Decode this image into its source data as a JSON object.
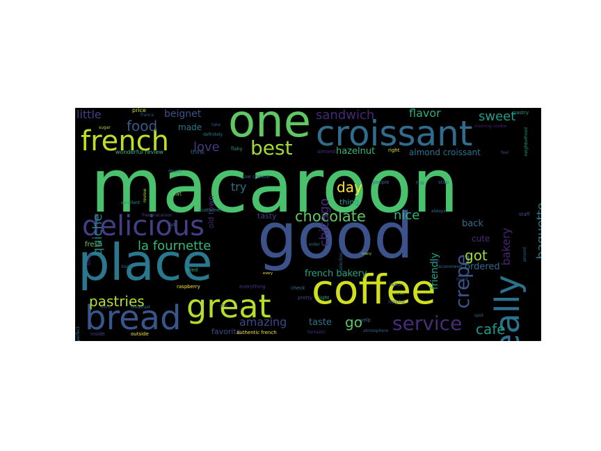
{
  "wordcloud": {
    "words": [
      {
        "text": "macaroon",
        "color": "#4ac16d"
      },
      {
        "text": "good",
        "color": "#3b528b"
      },
      {
        "text": "place",
        "color": "#2a788e"
      },
      {
        "text": "one",
        "color": "#5ec962"
      },
      {
        "text": "croissant",
        "color": "#2f6c8e"
      },
      {
        "text": "coffee",
        "color": "#d0e11c"
      },
      {
        "text": "bread",
        "color": "#39568c"
      },
      {
        "text": "great",
        "color": "#b5de2b"
      },
      {
        "text": "delicious",
        "color": "#433e85"
      },
      {
        "text": "really",
        "color": "#2c728e"
      },
      {
        "text": "french",
        "color": "#bddf26"
      },
      {
        "text": "service",
        "color": "#472c7a"
      },
      {
        "text": "best",
        "color": "#a2da37"
      },
      {
        "text": "chocolate",
        "color": "#5ec962"
      },
      {
        "text": "crepe",
        "color": "#3a548c"
      },
      {
        "text": "la fournette",
        "color": "#35b779"
      },
      {
        "text": "pastries",
        "color": "#b5de2b"
      },
      {
        "text": "quiche",
        "color": "#25848e"
      },
      {
        "text": "sandwich",
        "color": "#482878"
      },
      {
        "text": "food",
        "color": "#38598c"
      },
      {
        "text": "love",
        "color": "#443983"
      },
      {
        "text": "sweet",
        "color": "#1f9e89"
      },
      {
        "text": "day",
        "color": "#fde725"
      },
      {
        "text": "chicago",
        "color": "#472a7a"
      },
      {
        "text": "nice",
        "color": "#31b57b"
      },
      {
        "text": "amazing",
        "color": "#3e4989"
      },
      {
        "text": "got",
        "color": "#a0da39"
      },
      {
        "text": "go",
        "color": "#56c667"
      },
      {
        "text": "cafe",
        "color": "#1f998a"
      },
      {
        "text": "baguette",
        "color": "#2a788e"
      },
      {
        "text": "bakery",
        "color": "#482475"
      },
      {
        "text": "sandwiches",
        "color": "#482173"
      },
      {
        "text": "flavor",
        "color": "#29af7f"
      },
      {
        "text": "try",
        "color": "#2d708e"
      },
      {
        "text": "little",
        "color": "#433e85"
      },
      {
        "text": "beignet",
        "color": "#3b528b"
      },
      {
        "text": "friendly",
        "color": "#20a486"
      },
      {
        "text": "french bakery",
        "color": "#22a785"
      },
      {
        "text": "taste",
        "color": "#2c728e"
      },
      {
        "text": "hazelnut",
        "color": "#35b779"
      },
      {
        "text": "almond croissant",
        "color": "#2c728e"
      },
      {
        "text": "old town",
        "color": "#482878"
      },
      {
        "text": "made",
        "color": "#2a788e"
      },
      {
        "text": "thing",
        "color": "#20a386"
      },
      {
        "text": "tasty",
        "color": "#424086"
      },
      {
        "text": "back",
        "color": "#2e6e8e"
      },
      {
        "text": "cute",
        "color": "#472d7b"
      },
      {
        "text": "ordered",
        "color": "#2e6d8e"
      },
      {
        "text": "favorite",
        "color": "#3e4c8a"
      },
      {
        "text": "fresh",
        "color": "#5ec962"
      },
      {
        "text": "price",
        "color": "#d8e219"
      },
      {
        "text": "pastry",
        "color": "#1f988b"
      },
      {
        "text": "wonderful review",
        "color": "#35b779"
      },
      {
        "text": "think",
        "color": "#31688e"
      },
      {
        "text": "flaky",
        "color": "#20928c"
      },
      {
        "text": "almond",
        "color": "#46307e"
      },
      {
        "text": "right",
        "color": "#e2e418"
      },
      {
        "text": "much",
        "color": "#2d708e"
      },
      {
        "text": "raw cheese",
        "color": "#38598c"
      },
      {
        "text": "eat",
        "color": "#6ccd5a"
      },
      {
        "text": "customer",
        "color": "#26828e"
      },
      {
        "text": "people",
        "color": "#31688e"
      },
      {
        "text": "always",
        "color": "#2c728e"
      },
      {
        "text": "staff",
        "color": "#39568c"
      },
      {
        "text": "stop",
        "color": "#31688e"
      },
      {
        "text": "raspberry",
        "color": "#fde725"
      },
      {
        "text": "tried",
        "color": "#29af7f"
      },
      {
        "text": "everything",
        "color": "#453781"
      },
      {
        "text": "check",
        "color": "#287d8e"
      },
      {
        "text": "pretty",
        "color": "#3e4989"
      },
      {
        "text": "light",
        "color": "#1fa088"
      },
      {
        "text": "cheese",
        "color": "#a2da37"
      },
      {
        "text": "helpful",
        "color": "#3a548c"
      },
      {
        "text": "spot",
        "color": "#31688e"
      },
      {
        "text": "yelp",
        "color": "#2c728e"
      },
      {
        "text": "authentic french",
        "color": "#fde725"
      },
      {
        "text": "fantastic",
        "color": "#46327e"
      },
      {
        "text": "atmosphere",
        "color": "#33638d"
      },
      {
        "text": "inside",
        "color": "#3e4989"
      },
      {
        "text": "outside",
        "color": "#fde725"
      },
      {
        "text": "perfect",
        "color": "#2d708e"
      },
      {
        "text": "breakfast",
        "color": "#2d708e"
      },
      {
        "text": "star",
        "color": "#3b528b"
      },
      {
        "text": "definitely",
        "color": "#26828e"
      },
      {
        "text": "take",
        "color": "#3b528b"
      },
      {
        "text": "excellent",
        "color": "#21918c"
      },
      {
        "text": "order",
        "color": "#2a788e"
      },
      {
        "text": "item",
        "color": "#33638d"
      },
      {
        "text": "lot",
        "color": "#2a788e"
      },
      {
        "text": "well",
        "color": "#46307e"
      },
      {
        "text": "recommend",
        "color": "#2c728e"
      },
      {
        "text": "around",
        "color": "#2a788e"
      },
      {
        "text": "filling",
        "color": "#482475"
      },
      {
        "text": "better",
        "color": "#3b528b"
      },
      {
        "text": "loved",
        "color": "#3e4989"
      },
      {
        "text": "went",
        "color": "#3e4c8a"
      },
      {
        "text": "first",
        "color": "#31688e"
      },
      {
        "text": "every",
        "color": "#fde725"
      },
      {
        "text": "morning cookie",
        "color": "#482475"
      },
      {
        "text": "free macaroon",
        "color": "#404688"
      },
      {
        "text": "selection",
        "color": "#2c728e"
      },
      {
        "text": "many",
        "color": "#a5db36"
      },
      {
        "text": "france",
        "color": "#39568c"
      },
      {
        "text": "feel",
        "color": "#3e4989"
      },
      {
        "text": "neighborhood",
        "color": "#1f9e89"
      },
      {
        "text": "sugar",
        "color": "#a8db34"
      },
      {
        "text": "review",
        "color": "#b8de29"
      }
    ]
  }
}
